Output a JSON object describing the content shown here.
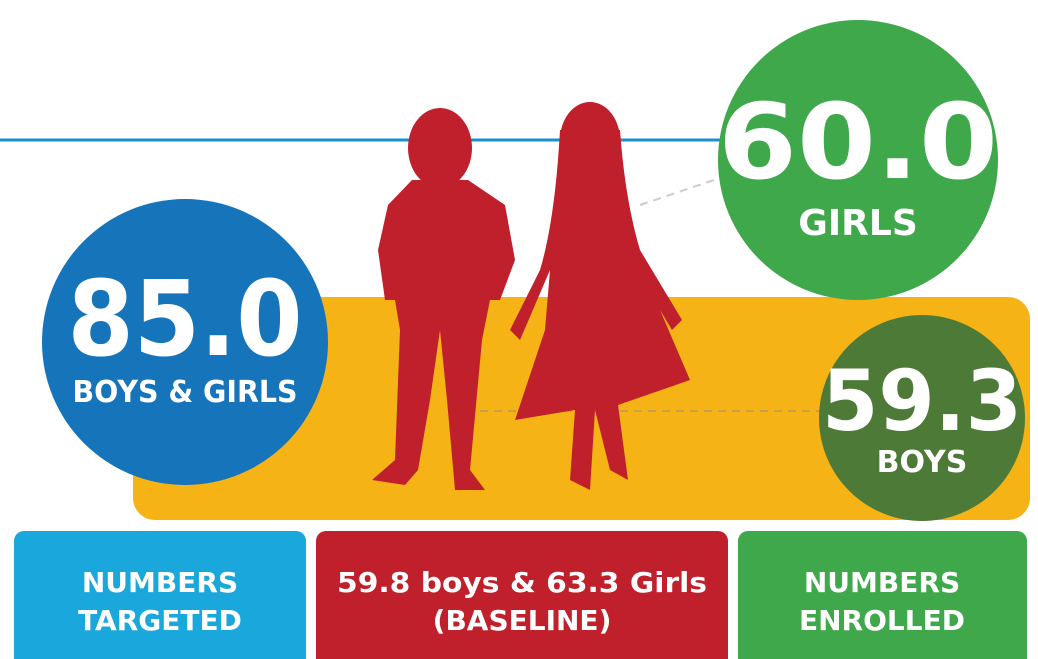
{
  "targeted": {
    "value": "85.0",
    "label": "BOYS & GIRLS"
  },
  "girls": {
    "value": "60.0",
    "label": "GIRLS"
  },
  "boys": {
    "value": "59.3",
    "label": "BOYS"
  },
  "boxes": [
    {
      "lines": [
        "NUMBERS",
        "TARGETED"
      ]
    },
    {
      "lines": [
        "59.8 boys & 63.3 Girls",
        "(BASELINE)"
      ]
    },
    {
      "lines": [
        "NUMBERS",
        "ENROLLED"
      ]
    }
  ]
}
